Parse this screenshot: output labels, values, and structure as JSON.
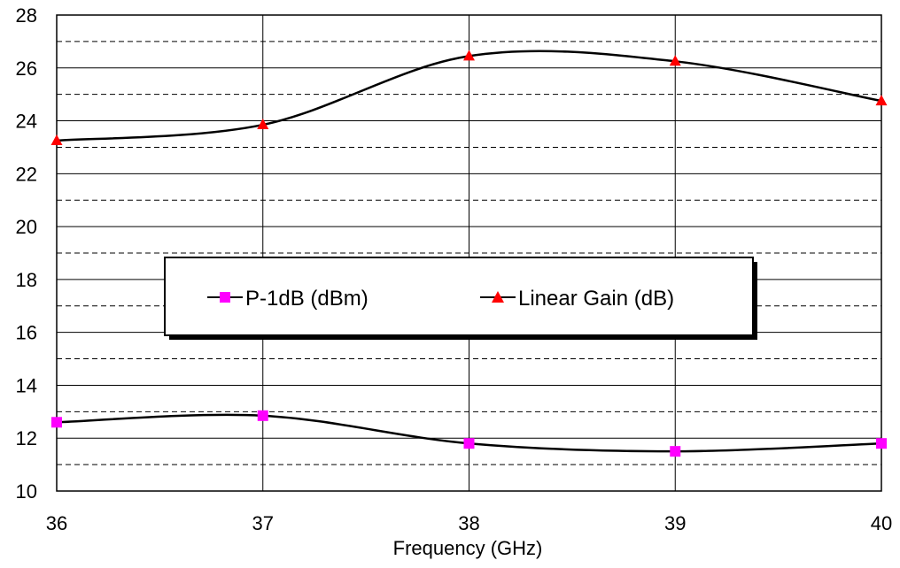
{
  "chart_data": {
    "type": "line",
    "title": "",
    "xlabel": "Frequency (GHz)",
    "ylabel": "",
    "x": [
      36,
      37,
      38,
      39,
      40
    ],
    "xlim": [
      36,
      40
    ],
    "ylim": [
      10,
      28
    ],
    "x_ticks": [
      "36",
      "37",
      "38",
      "39",
      "40"
    ],
    "y_ticks": [
      "10",
      "12",
      "14",
      "16",
      "18",
      "20",
      "22",
      "24",
      "26",
      "28"
    ],
    "y_tick_values": [
      10,
      12,
      14,
      16,
      18,
      20,
      22,
      24,
      26,
      28
    ],
    "grid": {
      "major_solid": true,
      "minor_dashed": true
    },
    "legend_position": "center",
    "series": [
      {
        "name": "P-1dB (dBm)",
        "marker": "square",
        "marker_color": "#ff00ff",
        "line_color": "#000000",
        "values": [
          12.6,
          12.85,
          11.8,
          11.5,
          11.8
        ]
      },
      {
        "name": "Linear Gain (dB)",
        "marker": "triangle",
        "marker_color": "#ff0000",
        "line_color": "#000000",
        "values": [
          23.25,
          23.85,
          26.45,
          26.25,
          24.75
        ]
      }
    ]
  }
}
